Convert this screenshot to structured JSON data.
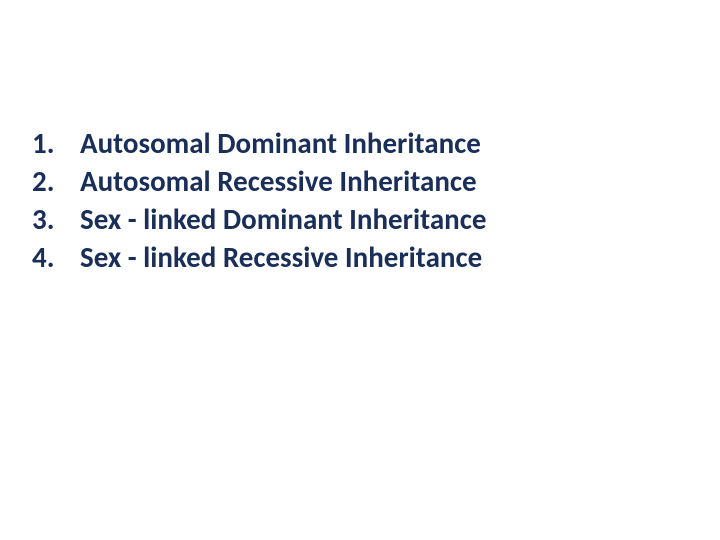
{
  "list": {
    "items": [
      {
        "number": "1.",
        "text": "Autosomal Dominant Inheritance"
      },
      {
        "number": "2.",
        "text": "Autosomal Recessive  Inheritance"
      },
      {
        "number": "3.",
        "text": "Sex - linked Dominant Inheritance"
      },
      {
        "number": "4.",
        "text": "Sex - linked Recessive  Inheritance"
      }
    ],
    "text_color": "#1a2e5a",
    "font_size": 29,
    "font_weight": 700,
    "background_color": "#ffffff"
  }
}
